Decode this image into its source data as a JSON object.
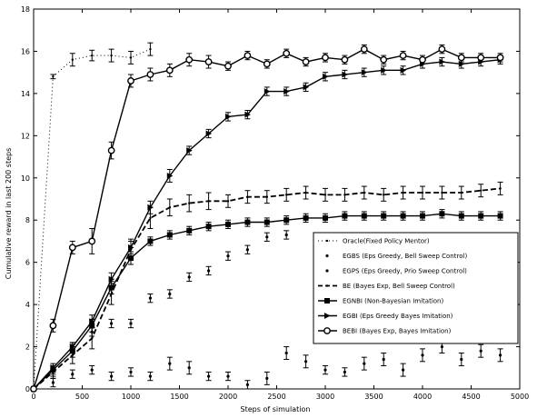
{
  "chart_data": {
    "type": "line",
    "xlabel": "Steps of simulation",
    "ylabel": "Cumulative reward in last 200 steps",
    "xlim": [
      0,
      5000
    ],
    "ylim": [
      0,
      18
    ],
    "xticks": [
      0,
      500,
      1000,
      1500,
      2000,
      2500,
      3000,
      3500,
      4000,
      4500,
      5000
    ],
    "yticks": [
      0,
      2,
      4,
      6,
      8,
      10,
      12,
      14,
      16,
      18
    ],
    "legend_position": "lower-right",
    "series": [
      {
        "name": "Oracle(Fixed Policy Mentor)",
        "style": "dotted-errorbar",
        "x": [
          0,
          200,
          400,
          600,
          800,
          1000,
          1200
        ],
        "y": [
          0,
          14.8,
          15.6,
          15.8,
          15.8,
          15.7,
          16.1
        ],
        "err": [
          0.1,
          0.1,
          0.3,
          0.25,
          0.3,
          0.3,
          0.3
        ]
      },
      {
        "name": "EGBS (Eps Greedy, Bell Sweep Control)",
        "style": "errorbar-only",
        "x": [
          0,
          200,
          400,
          600,
          800,
          1000,
          1200,
          1400,
          1600,
          1800,
          2000,
          2200,
          2400,
          2600,
          2800,
          3000,
          3200,
          3400,
          3600,
          3800,
          4000,
          4200,
          4400,
          4600,
          4800
        ],
        "y": [
          0,
          0.3,
          0.7,
          0.9,
          0.6,
          0.8,
          0.6,
          1.2,
          1.0,
          0.6,
          0.6,
          0.2,
          0.5,
          1.7,
          1.3,
          0.9,
          0.8,
          1.2,
          1.4,
          0.9,
          1.6,
          2.0,
          1.4,
          1.8,
          1.6
        ],
        "err": [
          0.1,
          0.2,
          0.2,
          0.2,
          0.2,
          0.2,
          0.2,
          0.3,
          0.3,
          0.2,
          0.2,
          0.2,
          0.3,
          0.3,
          0.3,
          0.2,
          0.2,
          0.3,
          0.3,
          0.3,
          0.3,
          0.3,
          0.3,
          0.3,
          0.3
        ]
      },
      {
        "name": "EGPS (Eps Greedy, Prio Sweep Control)",
        "style": "errorbar-only",
        "x": [
          0,
          200,
          400,
          600,
          800,
          1000,
          1200,
          1400,
          1600,
          1800,
          2000,
          2200,
          2400,
          2600
        ],
        "y": [
          0,
          0.8,
          2.0,
          2.7,
          3.1,
          3.1,
          4.3,
          4.5,
          5.3,
          5.6,
          6.3,
          6.6,
          7.2,
          7.3
        ],
        "err": [
          0.1,
          0.2,
          0.2,
          0.2,
          0.2,
          0.2,
          0.2,
          0.2,
          0.2,
          0.2,
          0.2,
          0.2,
          0.2,
          0.2
        ]
      },
      {
        "name": "BE (Bayes Exp, Bell Sweep Control)",
        "style": "dashed",
        "x": [
          0,
          200,
          400,
          600,
          800,
          1000,
          1200,
          1400,
          1600,
          1800,
          2000,
          2200,
          2400,
          2600,
          2800,
          3000,
          3200,
          3400,
          3600,
          3800,
          4000,
          4200,
          4400,
          4600,
          4800
        ],
        "y": [
          0,
          0.8,
          1.6,
          2.4,
          4.5,
          6.6,
          8.1,
          8.6,
          8.8,
          8.9,
          8.9,
          9.1,
          9.1,
          9.2,
          9.3,
          9.2,
          9.2,
          9.3,
          9.2,
          9.3,
          9.3,
          9.3,
          9.3,
          9.4,
          9.5
        ],
        "err": [
          0.1,
          0.3,
          0.4,
          0.5,
          0.5,
          0.5,
          0.5,
          0.4,
          0.4,
          0.4,
          0.3,
          0.3,
          0.3,
          0.3,
          0.3,
          0.3,
          0.3,
          0.3,
          0.3,
          0.3,
          0.3,
          0.3,
          0.3,
          0.3,
          0.3
        ]
      },
      {
        "name": "EGNBI (Non-Bayesian Imitation)",
        "style": "solid-square",
        "x": [
          0,
          200,
          400,
          600,
          800,
          1000,
          1200,
          1400,
          1600,
          1800,
          2000,
          2200,
          2400,
          2600,
          2800,
          3000,
          3200,
          3400,
          3600,
          3800,
          4000,
          4200,
          4400,
          4600,
          4800
        ],
        "y": [
          0,
          0.9,
          1.8,
          3.0,
          4.8,
          6.2,
          7.0,
          7.3,
          7.5,
          7.7,
          7.8,
          7.9,
          7.9,
          8.0,
          8.1,
          8.1,
          8.2,
          8.2,
          8.2,
          8.2,
          8.2,
          8.3,
          8.2,
          8.2,
          8.2
        ],
        "err": [
          0.1,
          0.2,
          0.3,
          0.3,
          0.3,
          0.3,
          0.2,
          0.2,
          0.2,
          0.2,
          0.2,
          0.2,
          0.2,
          0.2,
          0.2,
          0.2,
          0.2,
          0.2,
          0.2,
          0.2,
          0.2,
          0.2,
          0.2,
          0.2,
          0.2
        ]
      },
      {
        "name": "EGBI (Eps Greedy Bayes Imitation)",
        "style": "solid-triangle",
        "x": [
          0,
          200,
          400,
          600,
          800,
          1000,
          1200,
          1400,
          1600,
          1800,
          2000,
          2200,
          2400,
          2600,
          2800,
          3000,
          3200,
          3400,
          3600,
          3800,
          4000,
          4200,
          4400,
          4600,
          4800
        ],
        "y": [
          0,
          1.0,
          2.0,
          3.2,
          5.2,
          6.7,
          8.6,
          10.1,
          11.3,
          12.1,
          12.9,
          13.0,
          14.1,
          14.1,
          14.3,
          14.8,
          14.9,
          15.0,
          15.1,
          15.1,
          15.4,
          15.5,
          15.4,
          15.5,
          15.6
        ],
        "err": [
          0.1,
          0.2,
          0.2,
          0.3,
          0.3,
          0.3,
          0.3,
          0.3,
          0.2,
          0.2,
          0.2,
          0.2,
          0.2,
          0.2,
          0.2,
          0.2,
          0.2,
          0.2,
          0.2,
          0.2,
          0.2,
          0.2,
          0.2,
          0.2,
          0.2
        ]
      },
      {
        "name": "BEBI (Bayes Exp, Bayes Imitation)",
        "style": "solid-circle",
        "x": [
          0,
          200,
          400,
          600,
          800,
          1000,
          1200,
          1400,
          1600,
          1800,
          2000,
          2200,
          2400,
          2600,
          2800,
          3000,
          3200,
          3400,
          3600,
          3800,
          4000,
          4200,
          4400,
          4600,
          4800
        ],
        "y": [
          0,
          3.0,
          6.7,
          7.0,
          11.3,
          14.6,
          14.9,
          15.1,
          15.6,
          15.5,
          15.3,
          15.8,
          15.4,
          15.9,
          15.5,
          15.7,
          15.6,
          16.1,
          15.6,
          15.8,
          15.6,
          16.1,
          15.7,
          15.7,
          15.7
        ],
        "err": [
          0.1,
          0.3,
          0.3,
          0.6,
          0.4,
          0.3,
          0.3,
          0.3,
          0.3,
          0.3,
          0.2,
          0.2,
          0.2,
          0.2,
          0.2,
          0.2,
          0.2,
          0.2,
          0.2,
          0.2,
          0.2,
          0.2,
          0.2,
          0.2,
          0.2
        ]
      }
    ]
  }
}
